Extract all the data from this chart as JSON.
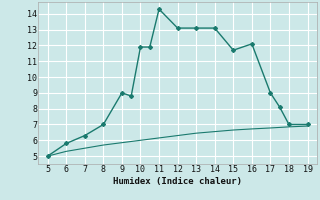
{
  "title": "",
  "xlabel": "Humidex (Indice chaleur)",
  "ylabel": "",
  "bg_color": "#cce8e8",
  "grid_color": "#ffffff",
  "line_color": "#1a7a6e",
  "xlim": [
    4.5,
    19.5
  ],
  "ylim": [
    4.5,
    14.75
  ],
  "xticks": [
    5,
    6,
    7,
    8,
    9,
    10,
    11,
    12,
    13,
    14,
    15,
    16,
    17,
    18,
    19
  ],
  "yticks": [
    5,
    6,
    7,
    8,
    9,
    10,
    11,
    12,
    13,
    14
  ],
  "upper_x": [
    5,
    6,
    7,
    8,
    9,
    9.5,
    10,
    10.5,
    11,
    12,
    13,
    14,
    15,
    16,
    17,
    17.5,
    18,
    19
  ],
  "upper_y": [
    5.0,
    5.8,
    6.3,
    7.0,
    9.0,
    8.8,
    11.9,
    11.9,
    14.3,
    13.1,
    13.1,
    13.1,
    11.7,
    12.1,
    9.0,
    8.1,
    7.0,
    7.0
  ],
  "lower_x": [
    5,
    6,
    7,
    8,
    9,
    10,
    11,
    12,
    13,
    14,
    15,
    16,
    17,
    18,
    19
  ],
  "lower_y": [
    5.0,
    5.3,
    5.5,
    5.7,
    5.85,
    6.0,
    6.15,
    6.3,
    6.45,
    6.55,
    6.65,
    6.72,
    6.78,
    6.85,
    6.9
  ]
}
